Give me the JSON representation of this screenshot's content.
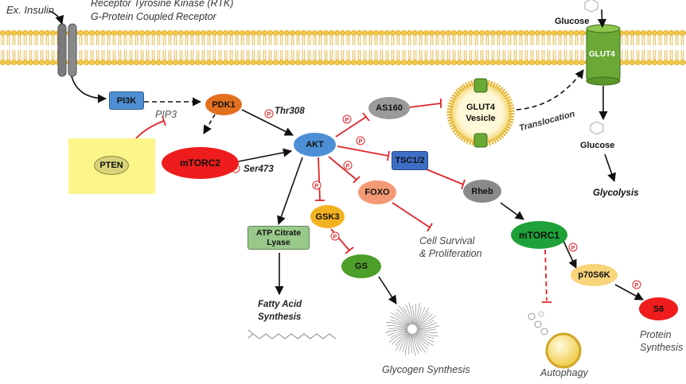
{
  "labels": {
    "ex_insulin": "Ex. Insulin",
    "rtk_1": "Receptor Tyrosine Kinase (RTK)",
    "rtk_2": "G-Protein Coupled Receptor",
    "glucose_top": "Glucose",
    "glut4_channel": "GLUT4",
    "pip3": "PIP3",
    "thr308": "Thr308",
    "ser473": "Ser473",
    "translocation": "Translocation",
    "glucose_mid": "Glucose",
    "glycolysis": "Glycolysis",
    "cell_survival_1": "Cell Survival",
    "cell_survival_2": "& Proliferation",
    "fatty_acid_1": "Fatty Acid",
    "fatty_acid_2": "Synthesis",
    "glycogen_synthesis": "Glycogen Synthesis",
    "autophagy": "Autophagy",
    "protein_synthesis_1": "Protein",
    "protein_synthesis_2": "Synthesis",
    "phospho": "P"
  },
  "nodes": {
    "pi3k": "PI3K",
    "pdk1": "PDK1",
    "pten": "PTEN",
    "mtorc2": "mTORC2",
    "akt": "AKT",
    "as160": "AS160",
    "glut4_vesicle_1": "GLUT4",
    "glut4_vesicle_2": "Vesicle",
    "tsc12": "TSC1/2",
    "foxo": "FOXO",
    "gsk3": "GSK3",
    "atp_citrate_1": "ATP Citrate",
    "atp_citrate_2": "Lyase",
    "gs": "GS",
    "rheb": "Rheb",
    "mtorc1": "mTORC1",
    "p70s6k": "p70S6K",
    "s6": "S6"
  },
  "colors": {
    "membrane_head": "#f2c94c",
    "membrane_tail": "#e6b52e",
    "inhibit": "#e0262a",
    "activate": "#111111",
    "pten_box": "#fbf58a"
  }
}
